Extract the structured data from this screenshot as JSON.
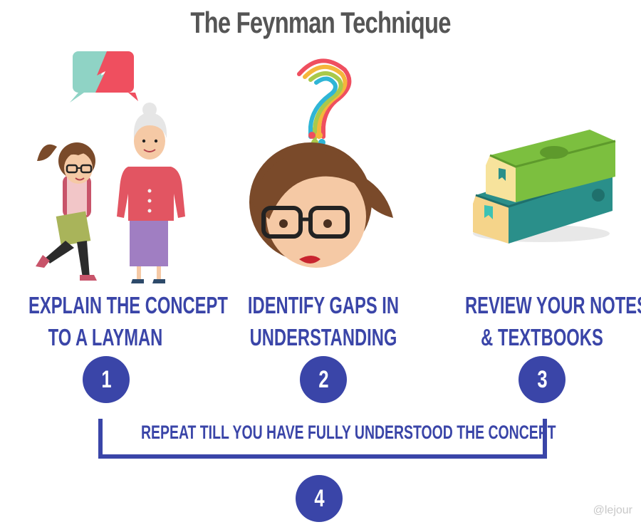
{
  "title": "The Feynman Technique",
  "steps": [
    {
      "number": "1",
      "lines": [
        "EXPLAIN THE CONCEPT",
        "TO A LAYMAN"
      ],
      "icon": "girl-and-grandmother-illustration"
    },
    {
      "number": "2",
      "lines": [
        "IDENTIFY GAPS IN",
        "UNDERSTANDING"
      ],
      "icon": "girl-with-question-mark-illustration"
    },
    {
      "number": "3",
      "lines": [
        "REVIEW YOUR NOTES",
        "& TEXTBOOKS"
      ],
      "icon": "stack-of-books-illustration"
    }
  ],
  "repeat": {
    "number": "4",
    "text": "REPEAT TILL YOU HAVE FULLY UNDERSTOOD THE CONCEPT"
  },
  "watermark": "@lejour",
  "colors": {
    "accent": "#3a45a8",
    "title": "#555555"
  }
}
